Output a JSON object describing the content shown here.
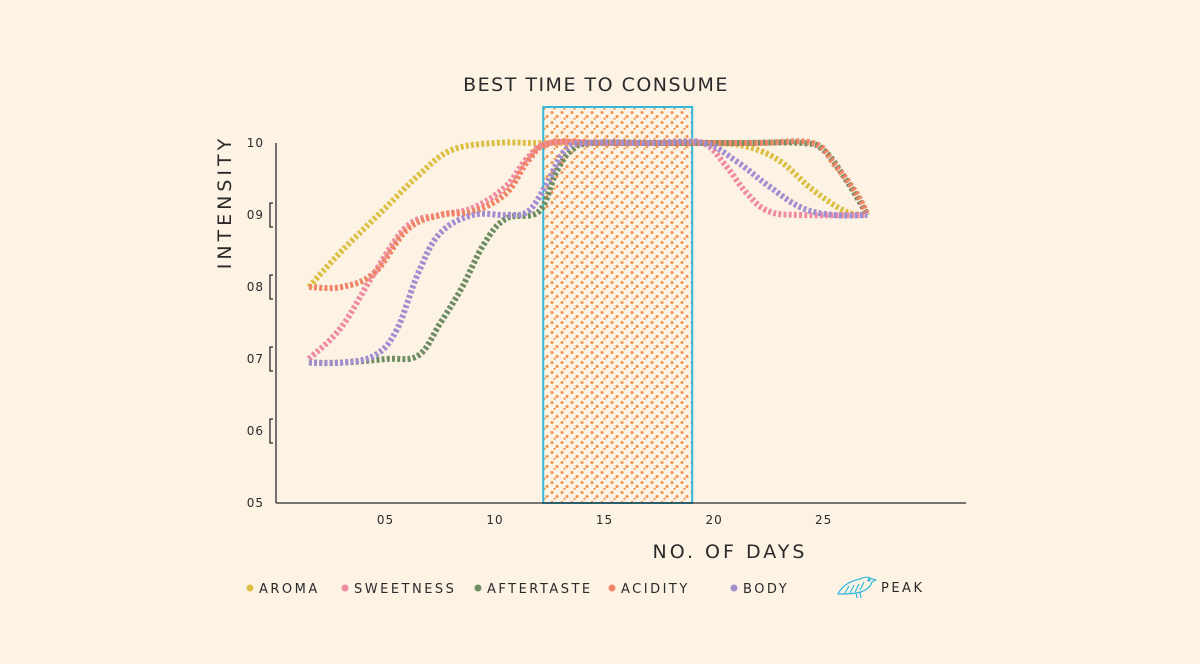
{
  "chart_data": {
    "type": "line",
    "title": "BEST TIME TO CONSUME",
    "xlabel": "NO. OF DAYS",
    "ylabel": "INTENSITY",
    "xlim": [
      0,
      31.5
    ],
    "ylim": [
      5,
      10
    ],
    "x_ticks": [
      {
        "value": 5,
        "label": "05"
      },
      {
        "value": 10,
        "label": "10"
      },
      {
        "value": 15,
        "label": "15"
      },
      {
        "value": 20,
        "label": "20"
      },
      {
        "value": 25,
        "label": "25"
      }
    ],
    "y_ticks": [
      {
        "value": 5,
        "label": "05"
      },
      {
        "value": 6,
        "label": "06"
      },
      {
        "value": 7,
        "label": "07"
      },
      {
        "value": 8,
        "label": "08"
      },
      {
        "value": 9,
        "label": "09"
      },
      {
        "value": 10,
        "label": "10"
      }
    ],
    "peak_range": [
      12.2,
      19.0
    ],
    "peak_label": "PEAK",
    "series": [
      {
        "name": "AROMA",
        "color": "#dcc046",
        "points": [
          [
            1.5,
            8.0
          ],
          [
            3,
            8.5
          ],
          [
            5,
            9.1
          ],
          [
            6.5,
            9.55
          ],
          [
            8,
            9.9
          ],
          [
            10,
            10.0
          ],
          [
            12,
            10.0
          ],
          [
            15,
            10.0
          ],
          [
            18,
            10.0
          ],
          [
            20,
            10.0
          ],
          [
            21.5,
            9.95
          ],
          [
            23,
            9.75
          ],
          [
            24.5,
            9.35
          ],
          [
            26,
            9.05
          ],
          [
            27,
            9.0
          ]
        ]
      },
      {
        "name": "SWEETNESS",
        "color": "#f08ca2",
        "points": [
          [
            1.5,
            7.0
          ],
          [
            3,
            7.45
          ],
          [
            4.5,
            8.2
          ],
          [
            6,
            8.85
          ],
          [
            7.5,
            9.0
          ],
          [
            9,
            9.1
          ],
          [
            10.5,
            9.4
          ],
          [
            11.5,
            9.8
          ],
          [
            12.5,
            10.0
          ],
          [
            15,
            10.0
          ],
          [
            18,
            10.0
          ],
          [
            19.5,
            10.0
          ],
          [
            20.5,
            9.7
          ],
          [
            21.5,
            9.3
          ],
          [
            22.5,
            9.05
          ],
          [
            24,
            9.0
          ],
          [
            27,
            9.0
          ]
        ]
      },
      {
        "name": "AFTERTASTE",
        "color": "#6e8d63",
        "points": [
          [
            1.5,
            6.95
          ],
          [
            3,
            6.95
          ],
          [
            5,
            7.0
          ],
          [
            6.5,
            7.05
          ],
          [
            7.5,
            7.5
          ],
          [
            8.5,
            8.0
          ],
          [
            9.5,
            8.6
          ],
          [
            10.5,
            8.95
          ],
          [
            12,
            9.05
          ],
          [
            12.8,
            9.6
          ],
          [
            13.5,
            9.9
          ],
          [
            14.5,
            10.0
          ],
          [
            18,
            10.0
          ],
          [
            21,
            10.0
          ],
          [
            24,
            10.0
          ],
          [
            25,
            9.9
          ],
          [
            26,
            9.5
          ],
          [
            27,
            9.0
          ]
        ]
      },
      {
        "name": "ACIDITY",
        "color": "#ef8466",
        "points": [
          [
            1.5,
            8.0
          ],
          [
            3,
            8.0
          ],
          [
            4.5,
            8.2
          ],
          [
            6,
            8.8
          ],
          [
            7.5,
            9.0
          ],
          [
            9,
            9.05
          ],
          [
            10.5,
            9.3
          ],
          [
            11.5,
            9.75
          ],
          [
            12.5,
            10.0
          ],
          [
            15,
            10.0
          ],
          [
            19,
            10.0
          ],
          [
            22,
            10.0
          ],
          [
            24.5,
            10.0
          ],
          [
            25.5,
            9.7
          ],
          [
            26.5,
            9.3
          ],
          [
            27,
            9.0
          ]
        ]
      },
      {
        "name": "BODY",
        "color": "#a38ed0",
        "points": [
          [
            1.5,
            6.95
          ],
          [
            3,
            6.95
          ],
          [
            4.5,
            7.05
          ],
          [
            5.5,
            7.4
          ],
          [
            6.5,
            8.2
          ],
          [
            7.5,
            8.75
          ],
          [
            9,
            9.0
          ],
          [
            10.5,
            9.0
          ],
          [
            11.5,
            9.05
          ],
          [
            12.3,
            9.4
          ],
          [
            13.2,
            9.9
          ],
          [
            14.2,
            10.0
          ],
          [
            17,
            10.0
          ],
          [
            19.5,
            10.0
          ],
          [
            21,
            9.75
          ],
          [
            22.5,
            9.4
          ],
          [
            24,
            9.1
          ],
          [
            25.5,
            9.0
          ],
          [
            27,
            9.0
          ]
        ]
      }
    ],
    "grid": false,
    "legend_position": "bottom"
  }
}
